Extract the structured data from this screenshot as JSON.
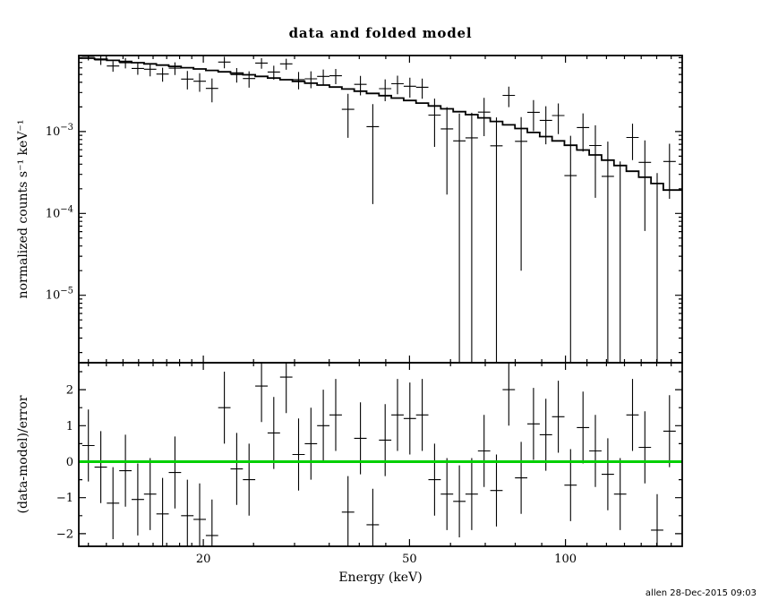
{
  "timestamp": "allen 28-Dec-2015 09:03",
  "chart_data": {
    "type": "scatter",
    "title": "data and folded model",
    "xlabel": "Energy (keV)",
    "x_scale": "log",
    "xlim": [
      11.5,
      168
    ],
    "x_ticks": [
      20,
      50,
      100
    ],
    "x_minor_ticks": [
      12,
      13,
      14,
      15,
      16,
      17,
      18,
      19,
      25,
      30,
      35,
      40,
      45,
      60,
      70,
      80,
      90,
      110,
      120,
      130,
      140,
      150,
      160
    ],
    "bin_edge_ratio": 1.0279,
    "energies_kev": [
      12.0,
      12.68,
      13.39,
      14.15,
      14.95,
      15.79,
      16.69,
      17.63,
      18.63,
      19.68,
      20.79,
      21.96,
      23.2,
      24.51,
      25.9,
      27.36,
      28.91,
      30.54,
      32.27,
      34.09,
      36.02,
      38.05,
      40.2,
      42.47,
      44.87,
      47.41,
      50.08,
      52.91,
      55.9,
      59.06,
      62.4,
      65.92,
      69.65,
      73.58,
      77.74,
      82.13,
      86.77,
      91.67,
      96.85,
      102.3,
      108.1,
      114.2,
      120.7,
      127.5,
      134.7,
      142.3,
      150.3,
      158.8
    ],
    "panels": [
      {
        "name": "spectrum",
        "ylabel": "normalized counts s⁻¹ keV⁻¹",
        "y_scale": "log",
        "ylim": [
          1.5e-06,
          0.0085
        ],
        "y_ticks": [
          0.001,
          0.0001,
          1e-05
        ],
        "series": [
          {
            "name": "data",
            "style": "errorbar-cross",
            "color": "#000000",
            "values": [
              0.00828,
              0.00749,
              0.00633,
              0.00693,
              0.00592,
              0.00578,
              0.00505,
              0.00596,
              0.00438,
              0.00412,
              0.00337,
              0.00708,
              0.00497,
              0.00445,
              0.00687,
              0.00534,
              0.00673,
              0.00432,
              0.00442,
              0.00472,
              0.00481,
              0.00187,
              0.00378,
              0.00115,
              0.00335,
              0.00384,
              0.00358,
              0.00348,
              0.00159,
              0.00108,
              0.00077,
              0.00084,
              0.00173,
              0.00067,
              0.00277,
              0.00076,
              0.00172,
              0.00137,
              0.00157,
              0.00029,
              0.00112,
              0.000675,
              0.000284,
              1e-06,
              0.000848,
              0.000421,
              1e-06,
              0.000431
            ],
            "errors": [
              0.00088,
              0.00097,
              0.00094,
              0.00101,
              0.00098,
              0.00104,
              0.00099,
              0.00105,
              0.00111,
              0.00106,
              0.00109,
              0.00113,
              0.001,
              0.00101,
              0.00102,
              0.00103,
              0.00103,
              0.00103,
              0.00103,
              0.00102,
              0.00101,
              0.00103,
              0.00101,
              0.00102,
              0.001,
              0.00098,
              0.00098,
              0.00096,
              0.00094,
              0.00091,
              0.00089,
              0.00086,
              0.00085,
              0.00082,
              0.00078,
              0.00074,
              0.00071,
              0.00067,
              0.00064,
              0.0006,
              0.00055,
              0.00052,
              0.00047,
              0.00043,
              0.0004,
              0.00036,
              0.00031,
              0.00028
            ]
          },
          {
            "name": "folded model",
            "style": "step-line",
            "color": "#000000",
            "values": [
              0.00788,
              0.00764,
              0.00741,
              0.00718,
              0.00695,
              0.00672,
              0.00649,
              0.00627,
              0.00604,
              0.00582,
              0.0056,
              0.00538,
              0.00517,
              0.00495,
              0.00473,
              0.00452,
              0.00431,
              0.00411,
              0.0039,
              0.0037,
              0.0035,
              0.00331,
              0.00312,
              0.00293,
              0.00275,
              0.00257,
              0.0024,
              0.00223,
              0.00206,
              0.0019,
              0.00175,
              0.00161,
              0.00147,
              0.00133,
              0.00121,
              0.00109,
              0.000975,
              0.000869,
              0.000771,
              0.00068,
              0.000596,
              0.000519,
              0.000448,
              0.000385,
              0.000328,
              0.000277,
              0.000232,
              0.000193
            ]
          }
        ]
      },
      {
        "name": "residuals",
        "ylabel": "(data-model)/error",
        "y_scale": "linear",
        "ylim": [
          -2.35,
          2.75
        ],
        "y_ticks": [
          -2,
          -1,
          0,
          1,
          2
        ],
        "y_minor_ticks": [
          -1.5,
          -0.5,
          0.5,
          1.5,
          2.5
        ],
        "series": [
          {
            "name": "(data-model)/error",
            "style": "errorbar-cross",
            "color": "#000000",
            "values": [
              0.45,
              -0.15,
              -1.15,
              -0.25,
              -1.05,
              -0.9,
              -1.45,
              -0.3,
              -1.5,
              -1.6,
              -2.05,
              1.5,
              -0.2,
              -0.5,
              2.1,
              0.8,
              2.35,
              0.2,
              0.5,
              1.0,
              1.3,
              -1.4,
              0.65,
              -1.75,
              0.6,
              1.3,
              1.2,
              1.3,
              -0.5,
              -0.9,
              -1.1,
              -0.9,
              0.3,
              -0.8,
              2.0,
              -0.45,
              1.05,
              0.75,
              1.25,
              -0.65,
              0.95,
              0.3,
              -0.35,
              -0.9,
              1.3,
              0.4,
              -1.9,
              0.85
            ],
            "error": 1
          },
          {
            "name": "zero line",
            "style": "hline",
            "value": 0,
            "color": "#00d000"
          }
        ]
      }
    ]
  }
}
